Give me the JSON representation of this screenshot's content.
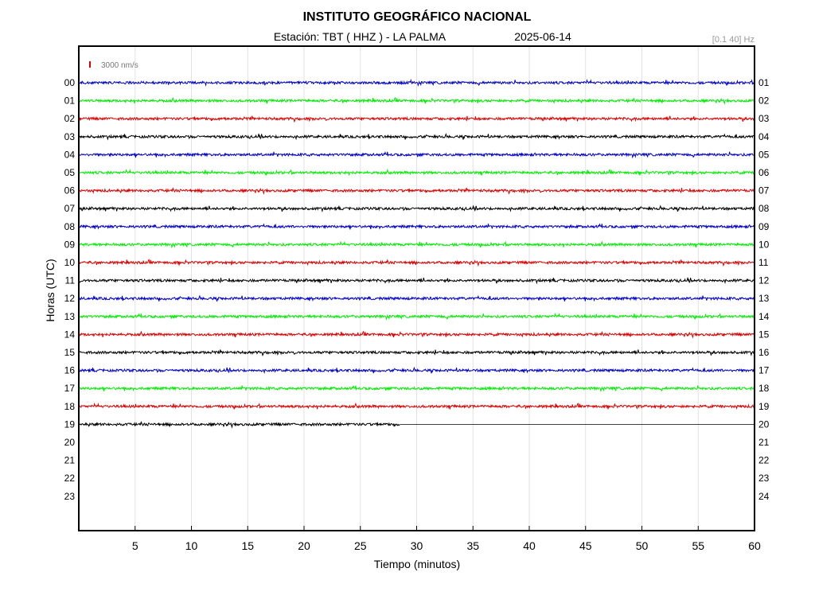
{
  "header": {
    "title": "INSTITUTO GEOGRÁFICO NACIONAL",
    "station": "Estación:  TBT ( HHZ ) - LA PALMA",
    "date": "2025-06-14",
    "filter": "[0.1 40] Hz"
  },
  "chart_data": {
    "type": "line",
    "title": "INSTITUTO GEOGRÁFICO NACIONAL",
    "xlabel": "Tiempo (minutos)",
    "ylabel": "Horas (UTC)",
    "xlim": [
      0,
      60
    ],
    "x_ticks": [
      5,
      10,
      15,
      20,
      25,
      30,
      35,
      40,
      45,
      50,
      55,
      60
    ],
    "left_hour_labels": [
      "00",
      "01",
      "02",
      "03",
      "04",
      "05",
      "06",
      "07",
      "08",
      "09",
      "10",
      "11",
      "12",
      "13",
      "14",
      "15",
      "16",
      "17",
      "18",
      "19",
      "20",
      "21",
      "22",
      "23"
    ],
    "right_hour_labels": [
      "01",
      "02",
      "03",
      "04",
      "05",
      "06",
      "07",
      "08",
      "09",
      "10",
      "11",
      "12",
      "13",
      "14",
      "15",
      "16",
      "17",
      "18",
      "19",
      "20",
      "21",
      "22",
      "23",
      "24"
    ],
    "scale_label": "3000 nm/s",
    "grid": "vertical",
    "colors": [
      "#0000cc",
      "#00ee00",
      "#dd0000",
      "#000000"
    ],
    "scale_color": "#dd0000",
    "traces": [
      {
        "hour": "00",
        "color": "#0000cc",
        "end_minute": 60
      },
      {
        "hour": "01",
        "color": "#00ee00",
        "end_minute": 60
      },
      {
        "hour": "02",
        "color": "#dd0000",
        "end_minute": 60
      },
      {
        "hour": "03",
        "color": "#000000",
        "end_minute": 60
      },
      {
        "hour": "04",
        "color": "#0000cc",
        "end_minute": 60
      },
      {
        "hour": "05",
        "color": "#00ee00",
        "end_minute": 60
      },
      {
        "hour": "06",
        "color": "#dd0000",
        "end_minute": 60
      },
      {
        "hour": "07",
        "color": "#000000",
        "end_minute": 60
      },
      {
        "hour": "08",
        "color": "#0000cc",
        "end_minute": 60
      },
      {
        "hour": "09",
        "color": "#00ee00",
        "end_minute": 60
      },
      {
        "hour": "10",
        "color": "#dd0000",
        "end_minute": 60
      },
      {
        "hour": "11",
        "color": "#000000",
        "end_minute": 60
      },
      {
        "hour": "12",
        "color": "#0000cc",
        "end_minute": 60
      },
      {
        "hour": "13",
        "color": "#00ee00",
        "end_minute": 60
      },
      {
        "hour": "14",
        "color": "#dd0000",
        "end_minute": 60
      },
      {
        "hour": "15",
        "color": "#000000",
        "end_minute": 60
      },
      {
        "hour": "16",
        "color": "#0000cc",
        "end_minute": 60
      },
      {
        "hour": "17",
        "color": "#00ee00",
        "end_minute": 60
      },
      {
        "hour": "18",
        "color": "#dd0000",
        "end_minute": 60
      },
      {
        "hour": "19",
        "color": "#000000",
        "end_minute": 28.5
      }
    ]
  }
}
